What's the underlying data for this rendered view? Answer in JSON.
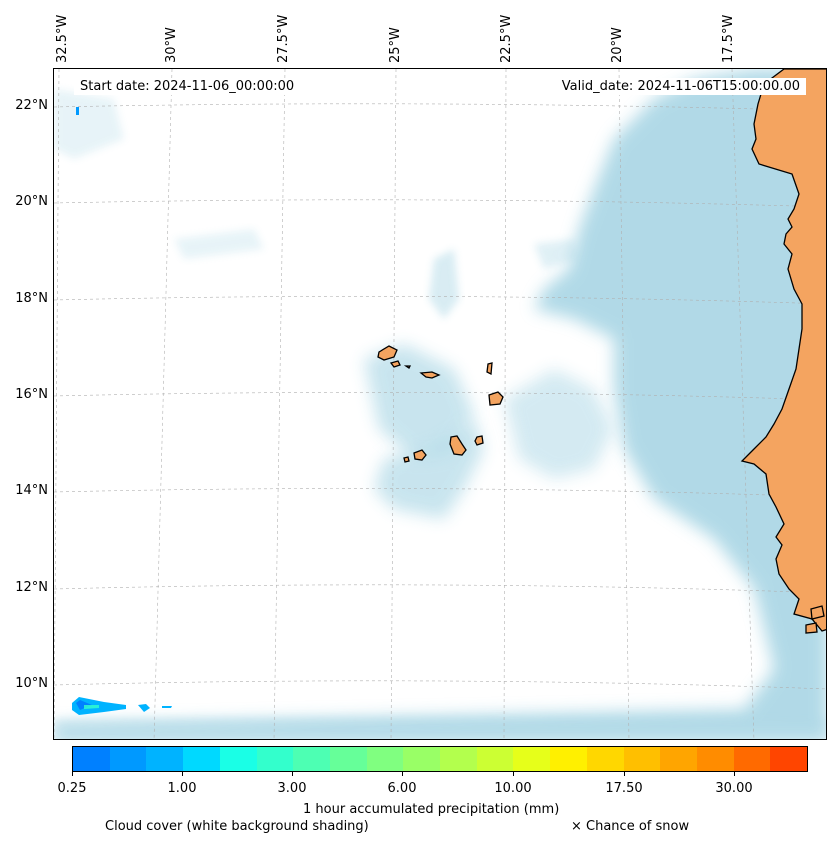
{
  "map": {
    "start_date": "Start date: 2024-11-06_00:00:00",
    "valid_date": "Valid_date: 2024-11-06T15:00:00.00",
    "lon_labels": [
      "32.5°W",
      "30°W",
      "27.5°W",
      "25°W",
      "22.5°W",
      "20°W",
      "17.5°W"
    ],
    "lat_labels": [
      "22°N",
      "20°N",
      "18°N",
      "16°N",
      "14°N",
      "12°N",
      "10°N"
    ],
    "colors": {
      "land": "#f4a460",
      "cloud": "#add8e6",
      "coast": "#000000",
      "grid": "#b0b0b0"
    }
  },
  "colorbar": {
    "colors": [
      "#0080ff",
      "#0099ff",
      "#00b3ff",
      "#00d9ff",
      "#1affe6",
      "#33ffcc",
      "#4dffb3",
      "#66ff99",
      "#80ff80",
      "#99ff66",
      "#b3ff4d",
      "#ccff33",
      "#e6ff1a",
      "#fff000",
      "#ffd700",
      "#ffbf00",
      "#ffa500",
      "#ff8c00",
      "#ff6a00",
      "#ff4500"
    ],
    "tick_labels": [
      "0.25",
      "1.00",
      "3.00",
      "6.00",
      "10.00",
      "17.50",
      "30.00"
    ],
    "label": "1 hour accumulated precipitation (mm)"
  },
  "captions": {
    "cloud": "Cloud cover (white background shading)",
    "snow": "× Chance of snow"
  }
}
